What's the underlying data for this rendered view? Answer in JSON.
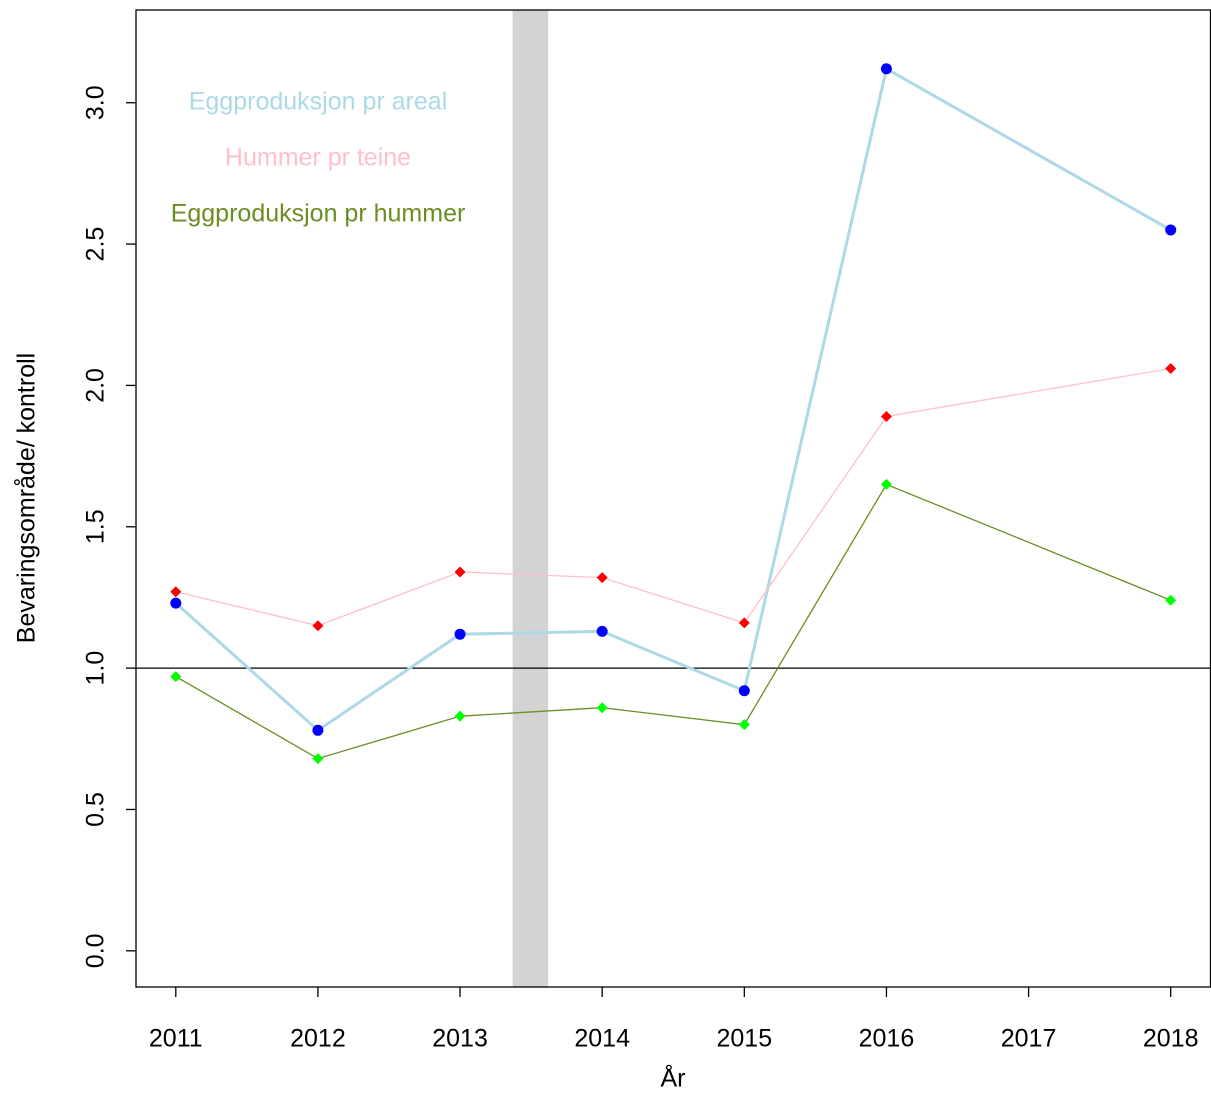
{
  "chart_data": {
    "type": "line",
    "xlabel": "År",
    "ylabel": "Bevaringsområde/ kontroll",
    "x": [
      2011,
      2012,
      2013,
      2014,
      2015,
      2016,
      2018
    ],
    "series": [
      {
        "name": "Eggproduksjon pr areal",
        "color": "#add8e6",
        "point_color": "#0000ff",
        "marker": "circle",
        "line_width": 3,
        "values": [
          1.23,
          0.78,
          1.12,
          1.13,
          0.92,
          3.12,
          2.55
        ]
      },
      {
        "name": "Hummer pr teine",
        "color": "#ffc0cb",
        "point_color": "#ff0000",
        "marker": "diamond",
        "line_width": 1.3,
        "values": [
          1.27,
          1.15,
          1.34,
          1.32,
          1.16,
          1.89,
          2.06
        ]
      },
      {
        "name": "Eggproduksjon pr hummer",
        "color": "#6b8e23",
        "point_color": "#00ff00",
        "marker": "diamond",
        "line_width": 1.3,
        "values": [
          0.97,
          0.68,
          0.83,
          0.86,
          0.8,
          1.65,
          1.24
        ]
      }
    ],
    "xlim": [
      2010.72,
      2018.28
    ],
    "xticks": [
      2011,
      2012,
      2013,
      2014,
      2015,
      2016,
      2017,
      2018
    ],
    "ylim": [
      -0.128,
      3.328
    ],
    "yticks": [
      {
        "value": 0,
        "label": "0.0"
      },
      0.5,
      {
        "value": 1,
        "label": "1.0"
      },
      1.5,
      {
        "value": 2,
        "label": "2.0"
      },
      2.5,
      {
        "value": 3,
        "label": "3.0"
      }
    ],
    "hline": 1,
    "hline_color": "#000000",
    "shaded_band": [
      2013.37,
      2013.62
    ],
    "band_color": "#d3d3d3",
    "legend": "topleft"
  }
}
